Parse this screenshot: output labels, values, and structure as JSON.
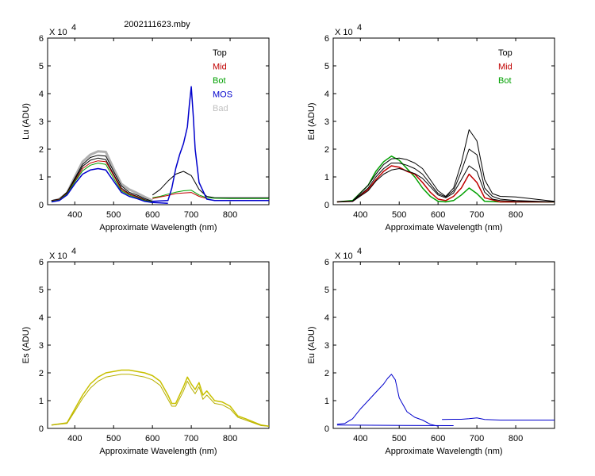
{
  "figure_title": "2002111623.mby",
  "chart_data": [
    {
      "type": "line",
      "id": "lu",
      "ylabel": "Lu (ADU)",
      "xlabel": "Approximate Wavelength (nm)",
      "multiplier": "X 10",
      "exponent": "4",
      "xlim": [
        330,
        900
      ],
      "ylim": [
        0,
        6
      ],
      "xticks": [
        400,
        500,
        600,
        700,
        800
      ],
      "yticks": [
        0,
        1,
        2,
        3,
        4,
        5,
        6
      ],
      "legend": [
        {
          "name": "Top",
          "color": "#000000"
        },
        {
          "name": "Mid",
          "color": "#c00000"
        },
        {
          "name": "Bot",
          "color": "#00a000"
        },
        {
          "name": "MOS",
          "color": "#0000cc"
        },
        {
          "name": "Bad",
          "color": "#c0c0c0"
        }
      ],
      "series": [
        {
          "name": "Bad",
          "color": "#b0b0b0",
          "width": 3,
          "x": [
            340,
            360,
            380,
            400,
            420,
            440,
            460,
            480,
            500,
            520,
            540,
            560,
            580,
            600
          ],
          "y": [
            0.12,
            0.2,
            0.42,
            1.0,
            1.55,
            1.8,
            1.92,
            1.9,
            1.3,
            0.75,
            0.55,
            0.42,
            0.28,
            0.15
          ]
        },
        {
          "name": "Top",
          "color": "#000000",
          "width": 1,
          "x": [
            340,
            360,
            380,
            400,
            420,
            440,
            460,
            480,
            500,
            520,
            540,
            560,
            580,
            600
          ],
          "y": [
            0.15,
            0.2,
            0.45,
            0.95,
            1.45,
            1.7,
            1.78,
            1.75,
            1.2,
            0.68,
            0.45,
            0.35,
            0.22,
            0.12
          ]
        },
        {
          "name": "Top",
          "color": "#000000",
          "width": 1,
          "x": [
            340,
            360,
            380,
            400,
            420,
            440,
            460,
            480,
            500,
            520,
            540,
            560,
            580,
            600
          ],
          "y": [
            0.15,
            0.19,
            0.42,
            0.9,
            1.38,
            1.6,
            1.68,
            1.62,
            1.1,
            0.6,
            0.4,
            0.3,
            0.18,
            0.1
          ]
        },
        {
          "name": "Top",
          "color": "#000000",
          "width": 1,
          "x": [
            600,
            620,
            640,
            660,
            680,
            700,
            720,
            740,
            760,
            800,
            850,
            900
          ],
          "y": [
            0.35,
            0.55,
            0.85,
            1.1,
            1.2,
            1.05,
            0.55,
            0.3,
            0.25,
            0.25,
            0.25,
            0.25
          ]
        },
        {
          "name": "Mid",
          "color": "#c00000",
          "width": 1,
          "x": [
            340,
            360,
            380,
            400,
            420,
            440,
            460,
            480,
            500,
            520,
            540,
            560,
            580,
            600
          ],
          "y": [
            0.13,
            0.18,
            0.4,
            0.85,
            1.3,
            1.5,
            1.58,
            1.55,
            1.05,
            0.55,
            0.38,
            0.28,
            0.16,
            0.1
          ]
        },
        {
          "name": "Bot",
          "color": "#00a000",
          "width": 1,
          "x": [
            340,
            360,
            380,
            400,
            420,
            440,
            460,
            480,
            500,
            520,
            540,
            560,
            580,
            600
          ],
          "y": [
            0.12,
            0.17,
            0.38,
            0.82,
            1.22,
            1.42,
            1.5,
            1.45,
            0.95,
            0.5,
            0.35,
            0.25,
            0.15,
            0.1
          ]
        },
        {
          "name": "Bot",
          "color": "#00a000",
          "width": 1,
          "x": [
            600,
            620,
            640,
            660,
            680,
            700,
            720,
            740,
            760,
            800,
            850,
            900
          ],
          "y": [
            0.25,
            0.3,
            0.38,
            0.45,
            0.5,
            0.52,
            0.35,
            0.25,
            0.23,
            0.22,
            0.22,
            0.22
          ]
        },
        {
          "name": "Mid",
          "color": "#c00000",
          "width": 1,
          "x": [
            600,
            620,
            640,
            660,
            680,
            700,
            720,
            740
          ],
          "y": [
            0.22,
            0.28,
            0.33,
            0.4,
            0.42,
            0.44,
            0.3,
            0.22
          ]
        },
        {
          "name": "MOS",
          "color": "#0000cc",
          "width": 1.5,
          "x": [
            340,
            360,
            380,
            400,
            420,
            440,
            460,
            480,
            500,
            520,
            540,
            560,
            580,
            600,
            640
          ],
          "y": [
            0.1,
            0.15,
            0.35,
            0.75,
            1.1,
            1.25,
            1.3,
            1.25,
            0.85,
            0.45,
            0.3,
            0.22,
            0.12,
            0.08,
            0.05
          ]
        },
        {
          "name": "MOS",
          "color": "#0000cc",
          "width": 1.5,
          "x": [
            600,
            640,
            650,
            660,
            670,
            680,
            690,
            695,
            700,
            705,
            710,
            720,
            740,
            760,
            800,
            900
          ],
          "y": [
            0.12,
            0.15,
            0.6,
            1.3,
            1.8,
            2.2,
            2.8,
            3.6,
            4.25,
            3.2,
            2.0,
            0.8,
            0.2,
            0.15,
            0.15,
            0.15
          ]
        }
      ]
    },
    {
      "type": "line",
      "id": "ed",
      "ylabel": "Ed (ADU)",
      "xlabel": "Approximate Wavelength (nm)",
      "multiplier": "X 10",
      "exponent": "4",
      "xlim": [
        330,
        900
      ],
      "ylim": [
        0,
        6
      ],
      "xticks": [
        400,
        500,
        600,
        700,
        800
      ],
      "yticks": [
        0,
        1,
        2,
        3,
        4,
        5,
        6
      ],
      "legend": [
        {
          "name": "Top",
          "color": "#000000"
        },
        {
          "name": "Mid",
          "color": "#c00000"
        },
        {
          "name": "Bot",
          "color": "#00a000"
        }
      ],
      "series": [
        {
          "name": "Bot",
          "color": "#00a000",
          "width": 1.5,
          "x": [
            340,
            380,
            420,
            440,
            460,
            480,
            500,
            520,
            540,
            560,
            580,
            600,
            620,
            640,
            660,
            680,
            700,
            720,
            760,
            800,
            900
          ],
          "y": [
            0.1,
            0.15,
            0.7,
            1.2,
            1.55,
            1.75,
            1.6,
            1.3,
            1.0,
            0.6,
            0.3,
            0.12,
            0.1,
            0.15,
            0.35,
            0.6,
            0.4,
            0.12,
            0.1,
            0.1,
            0.1
          ]
        },
        {
          "name": "Mid",
          "color": "#c00000",
          "width": 1.5,
          "x": [
            340,
            380,
            420,
            440,
            460,
            480,
            500,
            520,
            540,
            560,
            580,
            600,
            620,
            640,
            660,
            680,
            700,
            720,
            760,
            800,
            900
          ],
          "y": [
            0.1,
            0.12,
            0.55,
            0.9,
            1.2,
            1.4,
            1.35,
            1.2,
            1.1,
            0.8,
            0.45,
            0.2,
            0.15,
            0.3,
            0.6,
            1.1,
            0.8,
            0.25,
            0.1,
            0.1,
            0.1
          ]
        },
        {
          "name": "Top",
          "color": "#000000",
          "width": 1,
          "x": [
            340,
            380,
            420,
            440,
            460,
            480,
            500,
            520,
            540,
            560,
            580,
            600,
            620,
            640,
            660,
            680,
            700,
            720,
            740,
            760,
            800,
            900
          ],
          "y": [
            0.1,
            0.13,
            0.7,
            1.1,
            1.45,
            1.65,
            1.68,
            1.62,
            1.5,
            1.3,
            0.9,
            0.5,
            0.3,
            0.6,
            1.5,
            2.7,
            2.3,
            0.9,
            0.4,
            0.3,
            0.28,
            0.12
          ]
        },
        {
          "name": "Top",
          "color": "#000000",
          "width": 1,
          "x": [
            340,
            380,
            420,
            440,
            460,
            480,
            500,
            520,
            540,
            560,
            580,
            600,
            620,
            640,
            660,
            680,
            700,
            720,
            740,
            760,
            800,
            900
          ],
          "y": [
            0.1,
            0.12,
            0.6,
            1.0,
            1.3,
            1.5,
            1.5,
            1.42,
            1.3,
            1.1,
            0.75,
            0.4,
            0.28,
            0.5,
            1.2,
            2.0,
            1.8,
            0.6,
            0.3,
            0.2,
            0.15,
            0.1
          ]
        },
        {
          "name": "Top",
          "color": "#000000",
          "width": 1,
          "x": [
            340,
            380,
            420,
            440,
            460,
            480,
            500,
            520,
            540,
            560,
            580,
            600,
            620,
            640,
            660,
            680,
            700,
            720,
            740,
            760,
            800,
            900
          ],
          "y": [
            0.1,
            0.12,
            0.5,
            0.85,
            1.1,
            1.25,
            1.3,
            1.22,
            1.12,
            0.95,
            0.65,
            0.35,
            0.25,
            0.42,
            0.9,
            1.4,
            1.2,
            0.45,
            0.2,
            0.15,
            0.12,
            0.1
          ]
        }
      ]
    },
    {
      "type": "line",
      "id": "es",
      "ylabel": "Es (ADU)",
      "xlabel": "Approximate Wavelength (nm)",
      "multiplier": "X 10",
      "exponent": "4",
      "xlim": [
        330,
        900
      ],
      "ylim": [
        0,
        6
      ],
      "xticks": [
        400,
        500,
        600,
        700,
        800
      ],
      "yticks": [
        0,
        1,
        2,
        3,
        4,
        5,
        6
      ],
      "legend": [],
      "series": [
        {
          "name": "Es",
          "color": "#c8c000",
          "width": 1.5,
          "x": [
            340,
            380,
            400,
            420,
            440,
            460,
            480,
            500,
            520,
            540,
            560,
            580,
            600,
            620,
            640,
            650,
            660,
            680,
            690,
            700,
            710,
            720,
            730,
            740,
            760,
            780,
            800,
            820,
            840,
            880,
            900
          ],
          "y": [
            0.12,
            0.2,
            0.7,
            1.2,
            1.6,
            1.85,
            2.0,
            2.05,
            2.1,
            2.1,
            2.05,
            2.0,
            1.9,
            1.7,
            1.2,
            0.9,
            0.9,
            1.5,
            1.85,
            1.6,
            1.4,
            1.65,
            1.2,
            1.35,
            1.0,
            0.95,
            0.8,
            0.45,
            0.35,
            0.12,
            0.08
          ]
        },
        {
          "name": "Es",
          "color": "#b8b000",
          "width": 1,
          "x": [
            340,
            380,
            400,
            420,
            440,
            460,
            480,
            500,
            520,
            540,
            560,
            580,
            600,
            620,
            640,
            650,
            660,
            680,
            690,
            700,
            710,
            720,
            730,
            740,
            760,
            780,
            800,
            820,
            840,
            880,
            900
          ],
          "y": [
            0.12,
            0.18,
            0.62,
            1.08,
            1.45,
            1.7,
            1.85,
            1.9,
            1.95,
            1.95,
            1.9,
            1.85,
            1.75,
            1.55,
            1.05,
            0.8,
            0.8,
            1.35,
            1.7,
            1.45,
            1.25,
            1.5,
            1.05,
            1.2,
            0.9,
            0.85,
            0.7,
            0.4,
            0.3,
            0.1,
            0.08
          ]
        }
      ]
    },
    {
      "type": "line",
      "id": "eu",
      "ylabel": "Eu (ADU)",
      "xlabel": "Approximate Wavelength (nm)",
      "multiplier": "X 10",
      "exponent": "4",
      "xlim": [
        330,
        900
      ],
      "ylim": [
        0,
        6
      ],
      "xticks": [
        400,
        500,
        600,
        700,
        800
      ],
      "yticks": [
        0,
        1,
        2,
        3,
        4,
        5,
        6
      ],
      "legend": [],
      "series": [
        {
          "name": "Eu",
          "color": "#0000cc",
          "width": 1,
          "x": [
            340,
            360,
            380,
            400,
            420,
            440,
            460,
            470,
            480,
            490,
            500,
            520,
            540,
            560,
            580,
            600
          ],
          "y": [
            0.15,
            0.18,
            0.35,
            0.7,
            1.0,
            1.3,
            1.6,
            1.8,
            1.95,
            1.75,
            1.1,
            0.6,
            0.4,
            0.3,
            0.15,
            0.08
          ]
        },
        {
          "name": "Eu",
          "color": "#0000cc",
          "width": 1,
          "x": [
            340,
            640
          ],
          "y": [
            0.12,
            0.1
          ]
        },
        {
          "name": "Eu",
          "color": "#0000cc",
          "width": 1,
          "x": [
            610,
            640,
            660,
            680,
            700,
            710,
            720,
            760,
            800,
            850,
            900
          ],
          "y": [
            0.32,
            0.33,
            0.33,
            0.35,
            0.38,
            0.35,
            0.32,
            0.3,
            0.3,
            0.3,
            0.3
          ]
        }
      ]
    }
  ]
}
